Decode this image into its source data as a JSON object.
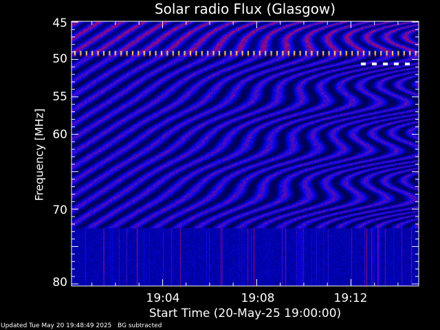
{
  "chart_data": {
    "type": "heatmap",
    "title": "Solar radio Flux (Glasgow)",
    "xlabel": "Start Time (20-May-25 19:00:00)",
    "ylabel": "Frequency [MHz]",
    "xlim": [
      "19:00",
      "19:14:40"
    ],
    "ylim": [
      45,
      80
    ],
    "y_inverted": true,
    "x_ticks": [
      "19:04",
      "19:08",
      "19:12"
    ],
    "y_ticks": [
      "45",
      "50",
      "55",
      "60",
      "70",
      "80"
    ],
    "colors": {
      "low": "#000060",
      "mid": "#1a1aff",
      "high": "#c01040",
      "peak": "#ffffff"
    },
    "grid": false
  },
  "footer": {
    "updated": "Updated Tue May 20 19:48:49 2025",
    "note": "BG subtracted"
  }
}
